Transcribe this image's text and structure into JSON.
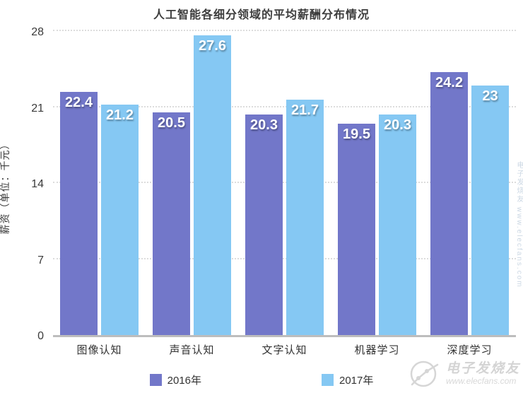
{
  "chart_data": {
    "type": "bar",
    "title": "人工智能各细分领域的平均薪酬分布情况",
    "xlabel": "",
    "ylabel": "薪资（单位：千元）",
    "categories": [
      "图像认知",
      "声音认知",
      "文字认知",
      "机器学习",
      "深度学习"
    ],
    "series": [
      {
        "name": "2016年",
        "color": "#7277C9",
        "values": [
          22.4,
          20.5,
          20.3,
          19.5,
          24.2
        ]
      },
      {
        "name": "2017年",
        "color": "#85C8F3",
        "values": [
          21.2,
          27.6,
          21.7,
          20.3,
          23
        ]
      }
    ],
    "ylim": [
      0,
      28
    ],
    "yticks": [
      0,
      7,
      14,
      21,
      28
    ],
    "grid": "horizontal dotted gridlines",
    "legend_position": "bottom center",
    "value_labels": "white bold numbers inside top of each bar"
  },
  "watermark": {
    "brand": "电子发烧友",
    "url": "www.elecfans.com",
    "side_text": "电子发烧友 www.elecfans.com"
  }
}
